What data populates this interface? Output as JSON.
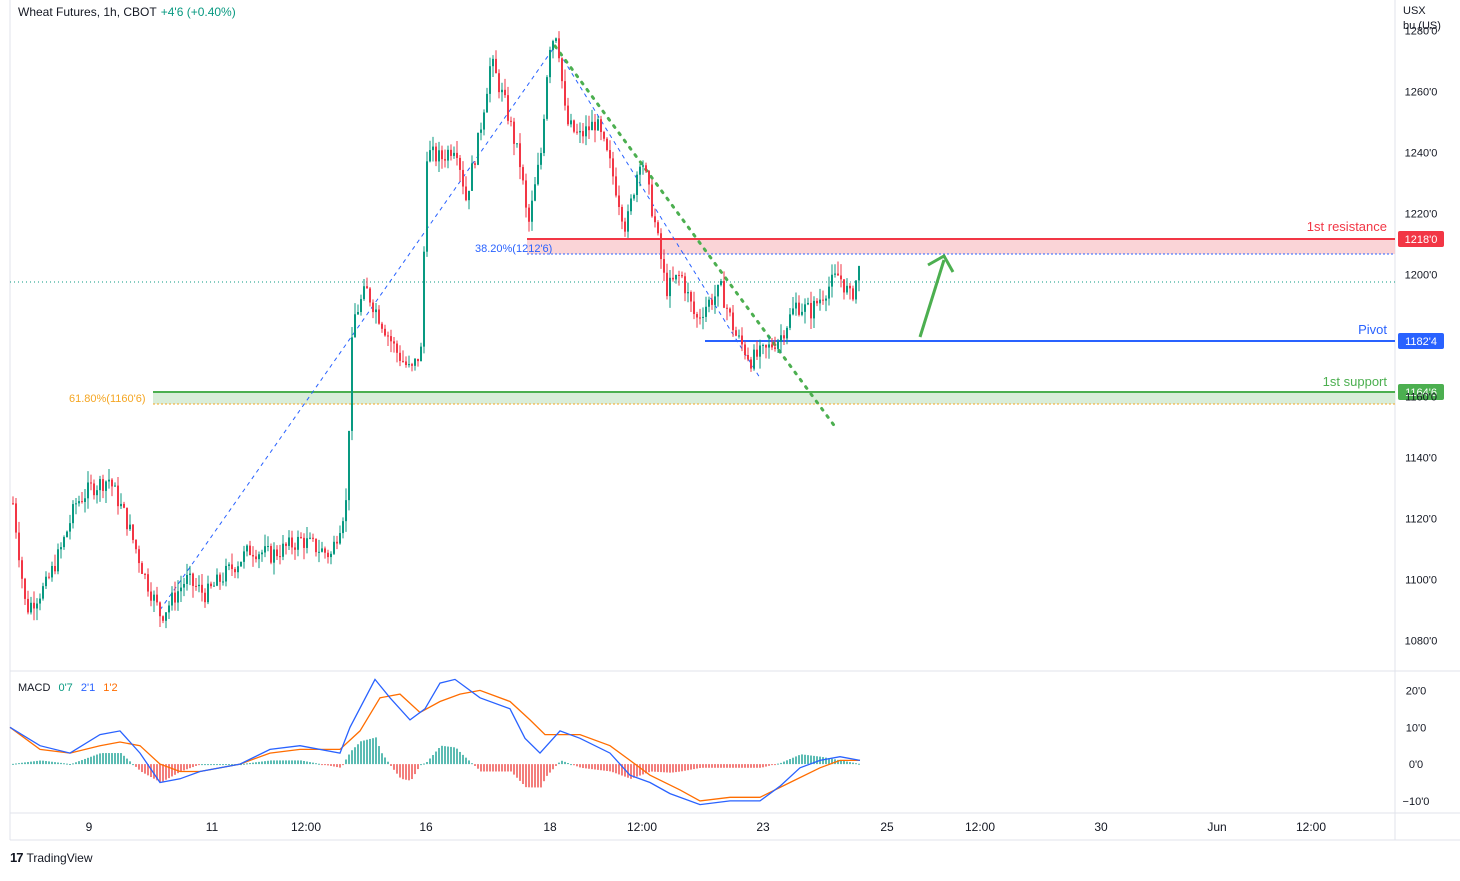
{
  "header": {
    "symbol": "Wheat Futures, 1h, CBOT",
    "change": "+4'6 (+0.40%)"
  },
  "price_scale": {
    "unit_line1": "USX",
    "unit_line2": "bu (US)",
    "ticks": [
      "1280'0",
      "1260'0",
      "1240'0",
      "1220'0",
      "1200'0",
      "1160'0",
      "1140'0",
      "1120'0",
      "1100'0",
      "1080'0"
    ]
  },
  "macd_scale": {
    "ticks": [
      "20'0",
      "10'0",
      "0'0",
      "−10'0"
    ]
  },
  "time_axis": {
    "ticks": [
      "9",
      "11",
      "12:00",
      "16",
      "18",
      "12:00",
      "23",
      "25",
      "12:00",
      "30",
      "Jun",
      "12:00"
    ]
  },
  "macd_legend": {
    "name": "MACD",
    "hist": "0'7",
    "macd": "2'1",
    "signal": "1'2"
  },
  "levels": {
    "resistance": {
      "label": "1st resistance",
      "value": "1218'0",
      "color": "#f23645"
    },
    "pivot": {
      "label": "Pivot",
      "value": "1182'4",
      "color": "#2962ff"
    },
    "support": {
      "label": "1st support",
      "value": "1164'6",
      "color": "#4caf50"
    }
  },
  "fib": {
    "f382": "38.20%(1212'6)",
    "f618": "61.80%(1160'6)"
  },
  "branding": {
    "logo_text": "TradingView"
  },
  "colors": {
    "up": "#089981",
    "down": "#f23645",
    "macd_line": "#2962ff",
    "signal_line": "#ff6d00",
    "hist_up": "#26a69a",
    "hist_down": "#ef5350"
  },
  "chart_data": {
    "type": "candlestick",
    "title": "Wheat Futures, 1h, CBOT",
    "ylabel": "USX bu (US)",
    "ylim": [
      1070,
      1290
    ],
    "series_close_approx": [
      {
        "x": "9",
        "y": 1105
      },
      {
        "x": "9",
        "y": 1090
      },
      {
        "x": "9",
        "y": 1100
      },
      {
        "x": "9",
        "y": 1125
      },
      {
        "x": "9",
        "y": 1130
      },
      {
        "x": "11",
        "y": 1110
      },
      {
        "x": "11",
        "y": 1090
      },
      {
        "x": "11",
        "y": 1100
      },
      {
        "x": "11",
        "y": 1105
      },
      {
        "x": "11",
        "y": 1090
      },
      {
        "x": "12:00",
        "y": 1110
      },
      {
        "x": "12:00",
        "y": 1115
      },
      {
        "x": "12:00",
        "y": 1110
      },
      {
        "x": "12:00",
        "y": 1175
      },
      {
        "x": "12:00",
        "y": 1195
      },
      {
        "x": "16",
        "y": 1170
      },
      {
        "x": "16",
        "y": 1165
      },
      {
        "x": "16",
        "y": 1240
      },
      {
        "x": "16",
        "y": 1235
      },
      {
        "x": "16",
        "y": 1270
      },
      {
        "x": "18",
        "y": 1230
      },
      {
        "x": "18",
        "y": 1280
      },
      {
        "x": "18",
        "y": 1245
      },
      {
        "x": "18",
        "y": 1250
      },
      {
        "x": "18",
        "y": 1235
      },
      {
        "x": "12:00",
        "y": 1210
      },
      {
        "x": "12:00",
        "y": 1195
      },
      {
        "x": "12:00",
        "y": 1185
      },
      {
        "x": "12:00",
        "y": 1175
      },
      {
        "x": "12:00",
        "y": 1170
      },
      {
        "x": "23",
        "y": 1180
      },
      {
        "x": "23",
        "y": 1195
      },
      {
        "x": "23",
        "y": 1185
      },
      {
        "x": "23",
        "y": 1195
      },
      {
        "x": "23",
        "y": 1205
      }
    ],
    "levels": [
      {
        "name": "1st resistance",
        "value": 1218.0
      },
      {
        "name": "Pivot",
        "value": 1182.5
      },
      {
        "name": "1st support",
        "value": 1164.75
      },
      {
        "name": "38.20%",
        "value": 1212.75
      },
      {
        "name": "61.80%",
        "value": 1160.75
      }
    ],
    "macd": {
      "ylim": [
        -13,
        25
      ],
      "hist": 0.7,
      "macd": 2.1,
      "signal": 1.2
    }
  }
}
